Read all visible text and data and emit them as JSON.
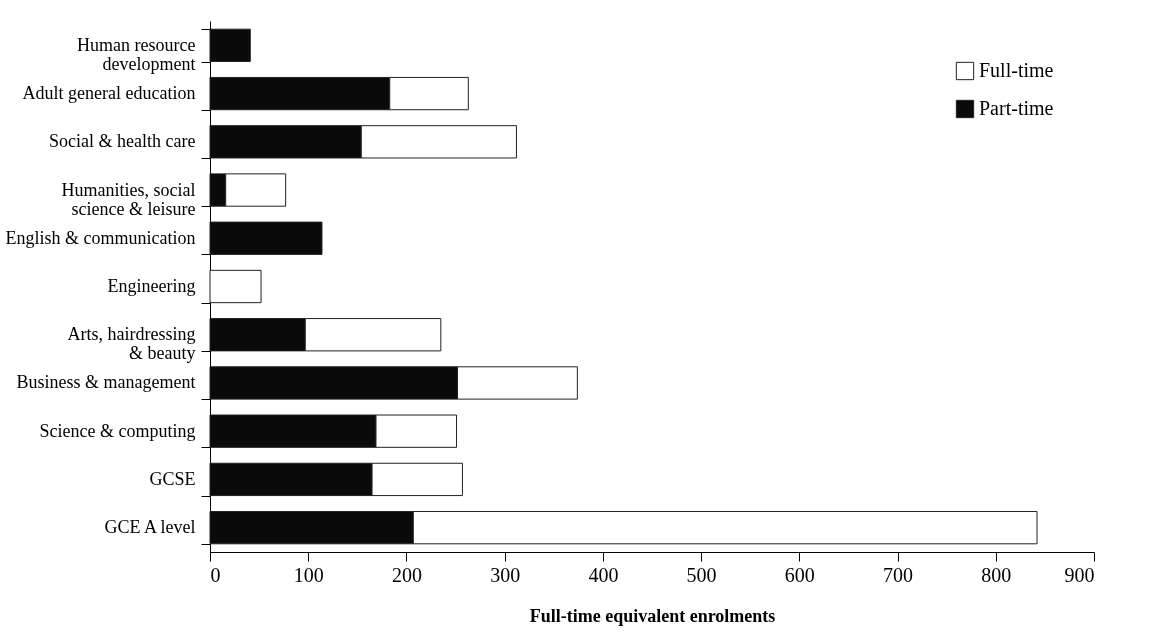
{
  "chart_data": {
    "type": "bar",
    "orientation": "horizontal",
    "stacked": true,
    "xlabel": "Full-time equivalent enrolments",
    "categories": [
      "Human resource\ndevelopment",
      "Adult general education",
      "Social & health care",
      "Humanities, social\nscience & leisure",
      "English & communication",
      "Engineering",
      "Arts, hairdressing\n& beauty",
      "Business & management",
      "Science & computing",
      "GCSE",
      "GCE A level"
    ],
    "series": [
      {
        "name": "Part-time",
        "color": "#0a0a0a",
        "values": [
          41,
          183,
          154,
          16,
          114,
          0,
          97,
          252,
          169,
          165,
          207
        ]
      },
      {
        "name": "Full-time",
        "color": "#ffffff",
        "values": [
          0,
          80,
          158,
          61,
          0,
          52,
          138,
          122,
          82,
          92,
          635
        ]
      }
    ],
    "xlim": [
      0,
      900
    ],
    "xticks": [
      0,
      100,
      200,
      300,
      400,
      500,
      600,
      700,
      800,
      900
    ],
    "grid": false,
    "legend": "top right"
  }
}
